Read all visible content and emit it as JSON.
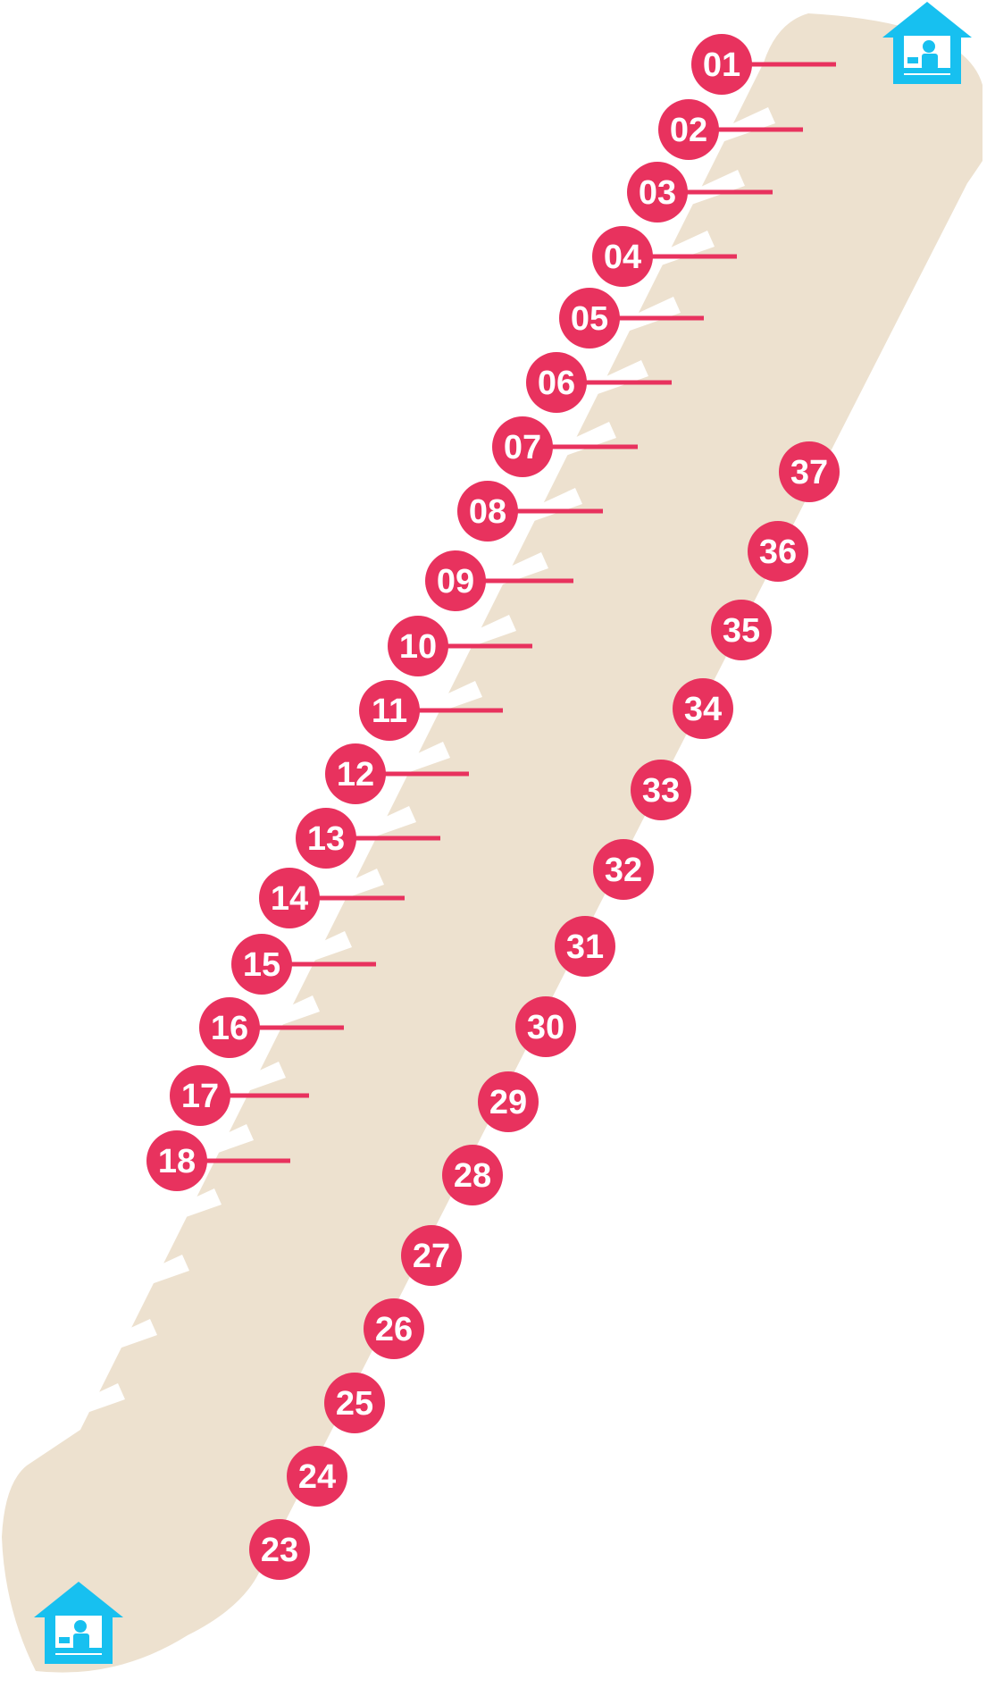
{
  "colors": {
    "corridor": "#ede1cf",
    "stall_marker": "#e8325e",
    "marker_text": "#ffffff",
    "booth_icon": "#17c0f0",
    "cutout": "#ffffff"
  },
  "icons": {
    "booth": "ticket-booth-house-icon"
  },
  "left_stalls": [
    {
      "label": "01"
    },
    {
      "label": "02"
    },
    {
      "label": "03"
    },
    {
      "label": "04"
    },
    {
      "label": "05"
    },
    {
      "label": "06"
    },
    {
      "label": "07"
    },
    {
      "label": "08"
    },
    {
      "label": "09"
    },
    {
      "label": "10"
    },
    {
      "label": "11"
    },
    {
      "label": "12"
    },
    {
      "label": "13"
    },
    {
      "label": "14"
    },
    {
      "label": "15"
    },
    {
      "label": "16"
    },
    {
      "label": "17"
    },
    {
      "label": "18"
    }
  ],
  "right_stalls": [
    {
      "label": "37"
    },
    {
      "label": "36"
    },
    {
      "label": "35"
    },
    {
      "label": "34"
    },
    {
      "label": "33"
    },
    {
      "label": "32"
    },
    {
      "label": "31"
    },
    {
      "label": "30"
    },
    {
      "label": "29"
    },
    {
      "label": "28"
    },
    {
      "label": "27"
    },
    {
      "label": "26"
    },
    {
      "label": "25"
    },
    {
      "label": "24"
    },
    {
      "label": "23"
    }
  ]
}
